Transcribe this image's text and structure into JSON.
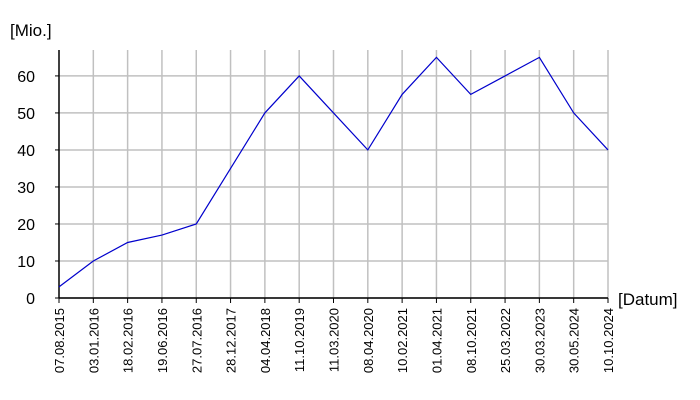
{
  "chart_data": {
    "type": "line",
    "title": "[Mio.]",
    "x_label": "[Datum]",
    "categories": [
      "07.08.2015",
      "03.01.2016",
      "18.02.2016",
      "19.06.2016",
      "27.07.2016",
      "28.12.2017",
      "04.04.2018",
      "11.10.2019",
      "11.03.2020",
      "08.04.2020",
      "10.02.2021",
      "01.04.2021",
      "08.10.2021",
      "25.03.2022",
      "30.03.2023",
      "30.05.2024",
      "10.10.2024"
    ],
    "values": [
      3,
      10,
      15,
      17,
      20,
      35,
      50,
      60,
      50,
      40,
      55,
      65,
      55,
      60,
      65,
      50,
      40
    ],
    "color": "#0000cc",
    "ylim": [
      0,
      67
    ],
    "yticks": [
      0,
      10,
      20,
      30,
      40,
      50,
      60
    ],
    "grid": true
  }
}
